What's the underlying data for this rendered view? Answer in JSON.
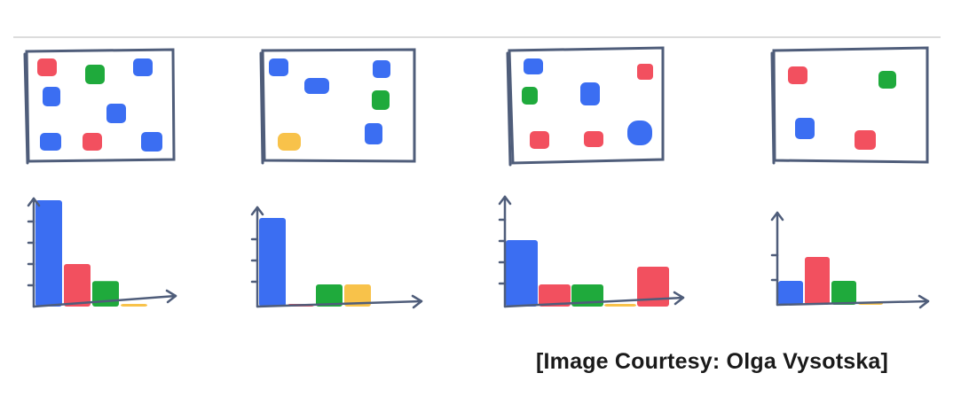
{
  "colors": {
    "blue": "#3b6ef2",
    "red": "#f2505f",
    "green": "#1faa3c",
    "yellow": "#f8c24a",
    "frame": "#4f5d7a",
    "divider": "#d0d0d0"
  },
  "credit_text": "[Image Courtesy: Olga Vysotska]",
  "chart_data": [
    {
      "type": "bar",
      "categories": [
        "blue",
        "red",
        "green",
        "yellow"
      ],
      "values": [
        5,
        2,
        1.2,
        0.1
      ],
      "title": "",
      "xlabel": "",
      "ylabel": "",
      "grid": false
    },
    {
      "type": "bar",
      "categories": [
        "blue",
        "red",
        "green",
        "yellow"
      ],
      "values": [
        4,
        0.1,
        1,
        1
      ],
      "title": "",
      "xlabel": "",
      "ylabel": "",
      "grid": false
    },
    {
      "type": "bar",
      "categories": [
        "blue",
        "red",
        "green",
        "yellow",
        "red"
      ],
      "values": [
        3,
        1,
        1,
        0.1,
        1.8
      ],
      "title": "",
      "xlabel": "",
      "ylabel": "",
      "grid": false
    },
    {
      "type": "bar",
      "categories": [
        "blue",
        "red",
        "green",
        "yellow"
      ],
      "values": [
        1,
        2,
        1,
        0.1
      ],
      "title": "",
      "xlabel": "",
      "ylabel": "",
      "grid": false
    }
  ]
}
